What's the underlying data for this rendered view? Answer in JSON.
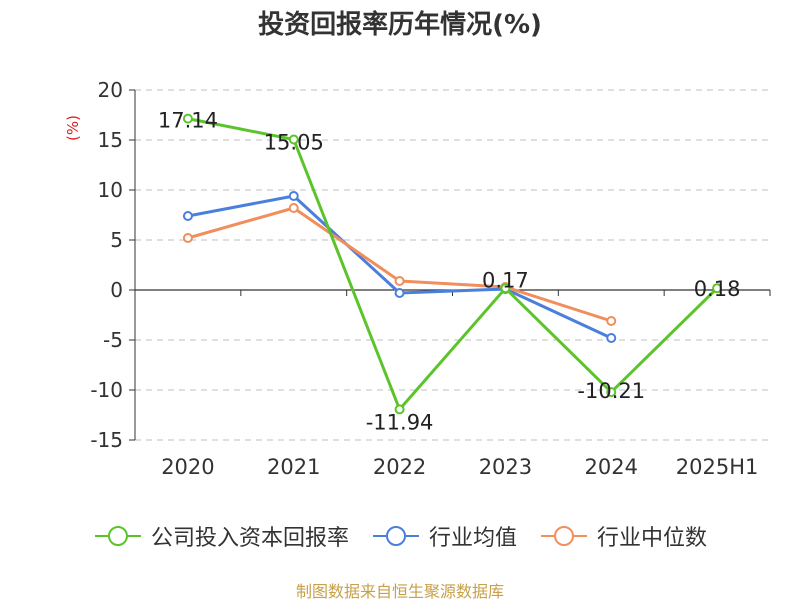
{
  "title": "投资回报率历年情况(%)",
  "source": "制图数据来自恒生聚源数据库",
  "chart_data": {
    "type": "line",
    "title": "投资回报率历年情况(%)",
    "ylabel": "(%)",
    "xlabel": "",
    "categories": [
      "2020",
      "2021",
      "2022",
      "2023",
      "2024",
      "2025H1"
    ],
    "ylim": [
      -15,
      20
    ],
    "yticks": [
      20,
      15,
      10,
      5,
      0,
      -5,
      -10,
      -15
    ],
    "grid": true,
    "legend_position": "bottom",
    "series": [
      {
        "name": "公司投入资本回报率",
        "color": "#5cc42b",
        "values": [
          17.14,
          15.05,
          -11.94,
          0.17,
          -10.21,
          0.18
        ],
        "labels": [
          "17.14",
          "15.05",
          "-11.94",
          "0.17",
          "-10.21",
          "0.18"
        ]
      },
      {
        "name": "行业均值",
        "color": "#4a7fdb",
        "values": [
          7.4,
          9.4,
          -0.3,
          0.1,
          -4.8,
          null
        ]
      },
      {
        "name": "行业中位数",
        "color": "#f08e5c",
        "values": [
          5.2,
          8.2,
          0.9,
          0.3,
          -3.1,
          null
        ]
      }
    ]
  }
}
